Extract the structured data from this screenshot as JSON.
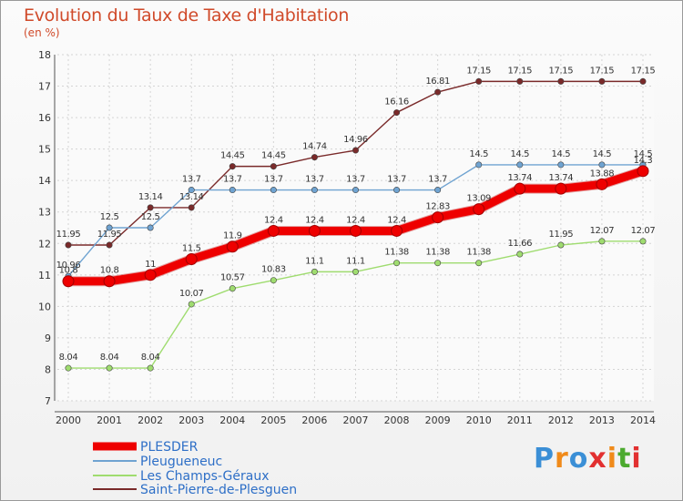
{
  "chart_data": {
    "type": "line",
    "title": "Evolution du Taux de Taxe d'Habitation",
    "unit_label": "(en %)",
    "x": [
      2000,
      2001,
      2002,
      2003,
      2004,
      2005,
      2006,
      2007,
      2008,
      2009,
      2010,
      2011,
      2012,
      2013,
      2014
    ],
    "ylim": [
      7,
      18
    ],
    "yticks": [
      7,
      8,
      9,
      10,
      11,
      12,
      13,
      14,
      15,
      16,
      17,
      18
    ],
    "grid": true,
    "legend_position": "bottom-left",
    "series": [
      {
        "name": "PLESDER",
        "color": "#ee0000",
        "values": [
          10.8,
          10.8,
          11,
          11.5,
          11.9,
          12.4,
          12.4,
          12.4,
          12.4,
          12.83,
          13.09,
          13.74,
          13.74,
          13.88,
          14.3
        ],
        "labels": [
          "10.8",
          "10.8",
          "11",
          "11.5",
          "11.9",
          "12.4",
          "12.4",
          "12.4",
          "12.4",
          "12.83",
          "13.09",
          "13.74",
          "13.74",
          "13.88",
          "14.3"
        ]
      },
      {
        "name": "Pleugueneuc",
        "color": "#6fa3d1",
        "values": [
          10.96,
          12.5,
          12.5,
          13.7,
          13.7,
          13.7,
          13.7,
          13.7,
          13.7,
          13.7,
          14.5,
          14.5,
          14.5,
          14.5,
          14.5
        ],
        "labels": [
          "10.96",
          "12.5",
          "12.5",
          "13.7",
          "13.7",
          "13.7",
          "13.7",
          "13.7",
          "13.7",
          "13.7",
          "14.5",
          "14.5",
          "14.5",
          "14.5",
          "14.5"
        ]
      },
      {
        "name": "Les Champs-Géraux",
        "color": "#9fdc6f",
        "values": [
          8.04,
          8.04,
          8.04,
          10.07,
          10.57,
          10.83,
          11.1,
          11.1,
          11.38,
          11.38,
          11.38,
          11.66,
          11.95,
          12.07,
          12.07
        ],
        "labels": [
          "8.04",
          "8.04",
          "8.04",
          "10.07",
          "10.57",
          "10.83",
          "11.1",
          "11.1",
          "11.38",
          "11.38",
          "11.38",
          "11.66",
          "11.95",
          "12.07",
          "12.07"
        ]
      },
      {
        "name": "Saint-Pierre-de-Plesguen",
        "color": "#7a2a2a",
        "values": [
          11.95,
          11.95,
          13.14,
          13.14,
          14.45,
          14.45,
          14.74,
          14.96,
          16.16,
          16.81,
          17.15,
          17.15,
          17.15,
          17.15,
          17.15
        ],
        "labels": [
          "11.95",
          "11.95",
          "13.14",
          "13.14",
          "14.45",
          "14.45",
          "14.74",
          "14.96",
          "16.16",
          "16.81",
          "17.15",
          "17.15",
          "17.15",
          "17.15",
          "17.15"
        ]
      }
    ]
  },
  "logo": {
    "letters": [
      "P",
      "r",
      "o",
      "x",
      "i",
      "t",
      "i"
    ],
    "colors": [
      "#3b8fd6",
      "#f08a1a",
      "#3b8fd6",
      "#e23030",
      "#f08a1a",
      "#4caa2f",
      "#e23030"
    ]
  }
}
